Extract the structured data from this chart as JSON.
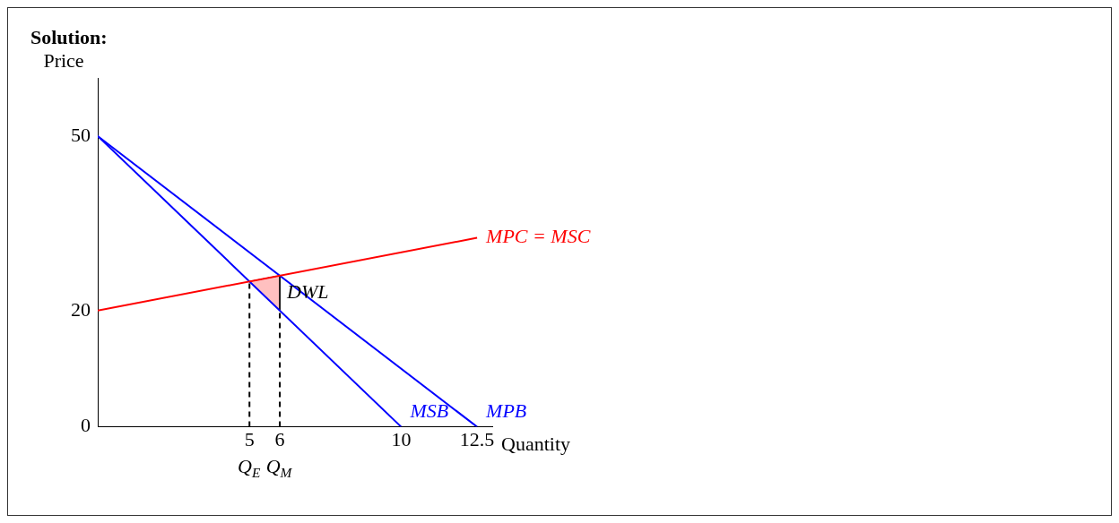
{
  "chart_data": {
    "type": "line",
    "title": "Solution:",
    "xlabel": "Quantity",
    "ylabel": "Price",
    "xlim": [
      0,
      13
    ],
    "ylim": [
      0,
      60
    ],
    "xticks": [
      5,
      6,
      10,
      12.5
    ],
    "yticks": [
      0,
      20,
      50
    ],
    "grid": false,
    "legend": false,
    "marker": "none",
    "series": [
      {
        "name": "MPC = MSC",
        "color": "#ff0000",
        "x": [
          0,
          12.5
        ],
        "values": [
          20,
          32.5
        ]
      },
      {
        "name": "MSB",
        "color": "#0000ff",
        "x": [
          0,
          10
        ],
        "values": [
          50,
          0
        ]
      },
      {
        "name": "MPB",
        "color": "#0000ff",
        "x": [
          0,
          12.5
        ],
        "values": [
          50,
          0
        ]
      },
      {
        "type": "area",
        "color": "#ffc0c0",
        "x": [
          5,
          6,
          6,
          5
        ],
        "values": [
          25,
          26,
          20,
          25
        ]
      },
      {
        "color": "#000000",
        "line_style": "dashed",
        "x": [
          5,
          5
        ],
        "values": [
          0,
          25
        ]
      },
      {
        "color": "#000000",
        "line_style": "dashed",
        "x": [
          6,
          6
        ],
        "values": [
          0,
          20
        ]
      }
    ],
    "annotations": [
      "DWL",
      {
        "text": "Q$_{E}$",
        "x": 5,
        "y": 0
      },
      {
        "text": "Q$_{M}$",
        "x": 6,
        "y": 0
      }
    ]
  }
}
